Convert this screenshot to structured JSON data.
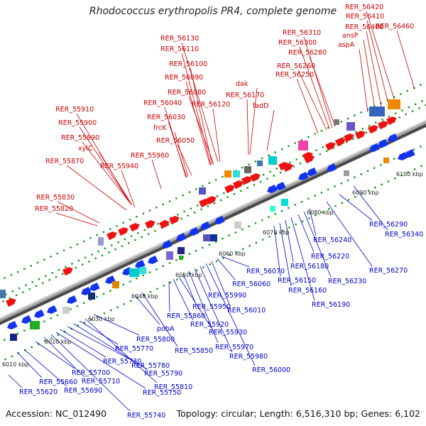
{
  "title": "Rhodococcus erythropolis PR4, complete genome",
  "accession": "Accession: NC_012490",
  "topology": "Topology: circular; Length: 6,516,310 bp; Genes: 6,102",
  "colors": {
    "top_label": "#cc0000",
    "bottom_label": "#0000cc",
    "red_gene": "#ee1111",
    "blue_gene": "#1133ee",
    "backbone": "#9a9a9a",
    "ticks": "#119911"
  },
  "scale_labels": [
    "6010 kbp",
    "6020 kbp",
    "6030 kbp",
    "6040 kbp",
    "6050 kbp",
    "6060 kbp",
    "6070 kbp",
    "6080 kbp",
    "6090 kbp",
    "6100 kbp"
  ],
  "top_labels": [
    "RER_55820",
    "RER_55830",
    "RER_55870",
    "RER_55940",
    "xylC",
    "RER_55890",
    "RER_55900",
    "RER_55910",
    "RER_55960",
    "RER_56050",
    "frcK",
    "RER_56030",
    "RER_56040",
    "RER_56080",
    "RER_56090",
    "RER_56100",
    "RER_56110",
    "RER_56130",
    "RER_56120",
    "RER_56170",
    "dak",
    "fadD",
    "RER_56250",
    "RER_56260",
    "RER_56280",
    "RER_56300",
    "RER_56310",
    "aspA",
    "ansP",
    "RER_56400",
    "RER_56410",
    "RER_56420",
    "RER_56460"
  ],
  "bottom_labels": [
    "RER_55620",
    "RER_55660",
    "RER_55690",
    "RER_55700",
    "RER_55710",
    "RER_55740",
    "RER_55750",
    "RER_55730",
    "RER_55780",
    "RER_55790",
    "RER_55770",
    "RER_55810",
    "RER_55800",
    "pobA",
    "RER_55850",
    "RER_55860",
    "RER_55920",
    "RER_55930",
    "RER_55950",
    "RER_55970",
    "RER_55980",
    "RER_55990",
    "RER_56000",
    "RER_56010",
    "RER_56060",
    "RER_56070",
    "RER_56150",
    "RER_56160",
    "RER_56180",
    "RER_56190",
    "RER_56220",
    "RER_56230",
    "RER_56240",
    "RER_56270",
    "RER_56290",
    "RER_56340"
  ]
}
